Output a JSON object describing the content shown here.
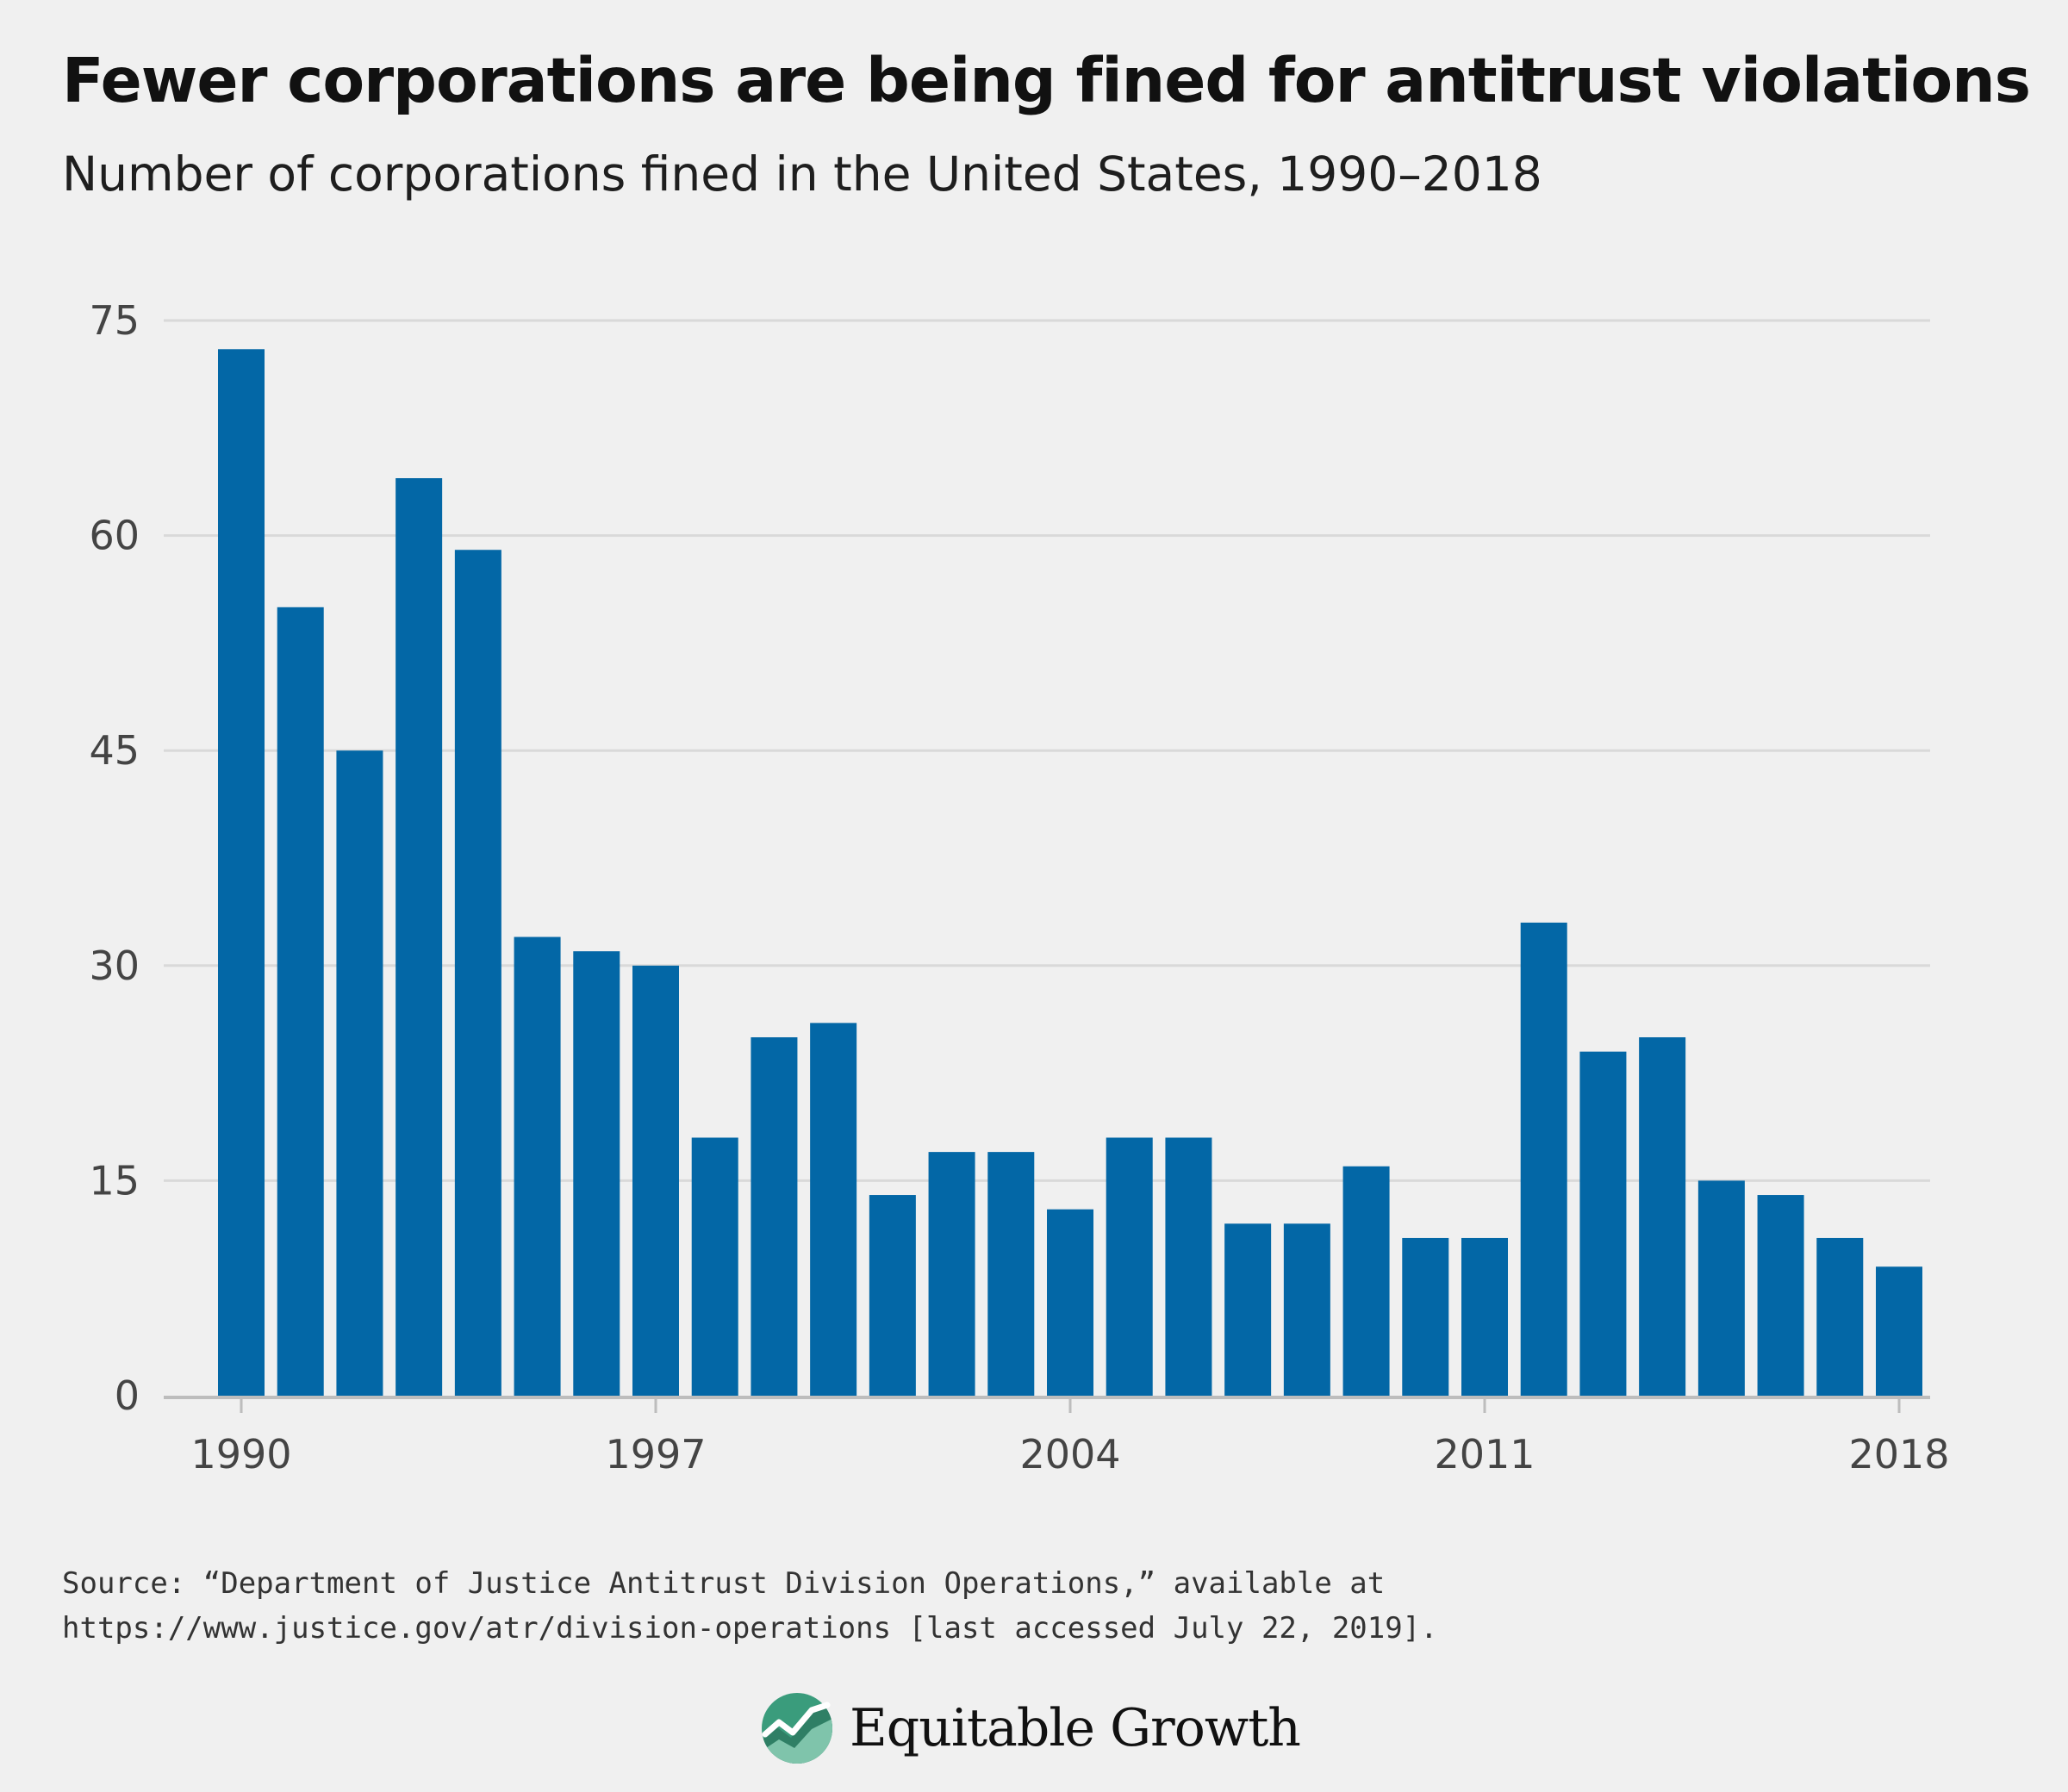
{
  "title": "Fewer corporations are being fined for antitrust violations",
  "subtitle": "Number of corporations fined in the United States, 1990–2018",
  "source": {
    "line1": "Source: “Department of Justice Antitrust Division Operations,” available at",
    "line2": "https://www.justice.gov/atr/division-operations [last accessed July 22, 2019]."
  },
  "logo": {
    "text": "Equitable Growth",
    "icon": "equitable-growth-logo-icon"
  },
  "colors": {
    "bar": "#0367a6",
    "grid": "#d9d9d9",
    "axis": "#bdbdbd",
    "background": "#f0f0f0",
    "logo_circle": "#3a9c7c"
  },
  "chart_data": {
    "type": "bar",
    "title": "Fewer corporations are being fined for antitrust violations",
    "subtitle": "Number of corporations fined in the United States, 1990–2018",
    "xlabel": "",
    "ylabel": "",
    "categories": [
      1990,
      1991,
      1992,
      1993,
      1994,
      1995,
      1996,
      1997,
      1998,
      1999,
      2000,
      2001,
      2002,
      2003,
      2004,
      2005,
      2006,
      2007,
      2008,
      2009,
      2010,
      2011,
      2012,
      2013,
      2014,
      2015,
      2016,
      2017,
      2018
    ],
    "values": [
      73,
      55,
      45,
      64,
      59,
      32,
      31,
      30,
      18,
      25,
      26,
      14,
      17,
      17,
      13,
      18,
      18,
      12,
      12,
      16,
      11,
      11,
      33,
      24,
      25,
      15,
      14,
      11,
      9
    ],
    "x_tick_labels": [
      "1990",
      "1997",
      "2004",
      "2011",
      "2018"
    ],
    "y_ticks": [
      0,
      15,
      30,
      45,
      60,
      75
    ],
    "ylim": [
      0,
      75
    ],
    "grid": true,
    "legend": "none"
  }
}
